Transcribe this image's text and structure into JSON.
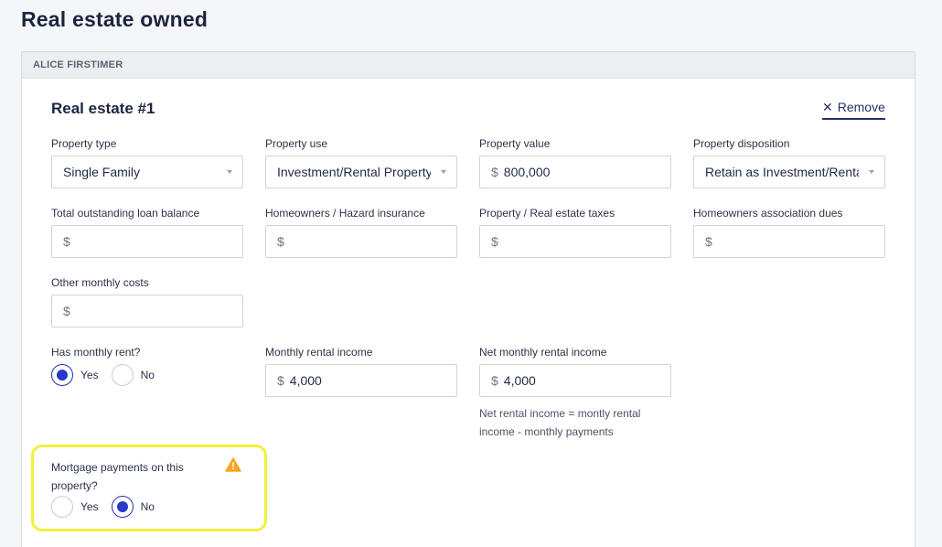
{
  "page": {
    "title": "Real estate owned"
  },
  "panel": {
    "borrower": "ALICE FIRSTIMER",
    "section_title": "Real estate #1",
    "remove_label": "Remove"
  },
  "fields": {
    "property_type": {
      "label": "Property type",
      "value": "Single Family"
    },
    "property_use": {
      "label": "Property use",
      "value": "Investment/Rental Property"
    },
    "property_value": {
      "label": "Property value",
      "currency": "$",
      "value": "800,000"
    },
    "property_disposition": {
      "label": "Property disposition",
      "value": "Retain as Investment/Rental"
    },
    "loan_balance": {
      "label": "Total outstanding loan balance",
      "currency": "$",
      "value": ""
    },
    "hazard_insurance": {
      "label": "Homeowners / Hazard insurance",
      "currency": "$",
      "value": ""
    },
    "taxes": {
      "label": "Property / Real estate taxes",
      "currency": "$",
      "value": ""
    },
    "hoa_dues": {
      "label": "Homeowners association dues",
      "currency": "$",
      "value": ""
    },
    "other_costs": {
      "label": "Other monthly costs",
      "currency": "$",
      "value": ""
    },
    "monthly_rental_income": {
      "label": "Monthly rental income",
      "currency": "$",
      "value": "4,000"
    },
    "net_monthly_rental_income": {
      "label": "Net monthly rental income",
      "currency": "$",
      "value": "4,000",
      "help": "Net rental income = montly rental income - monthly payments"
    }
  },
  "has_monthly_rent": {
    "label": "Has monthly rent?",
    "yes": "Yes",
    "no": "No",
    "selected": "yes"
  },
  "mortgage_payments": {
    "label": "Mortgage payments on this property?",
    "yes": "Yes",
    "no": "No",
    "selected": "no"
  },
  "colors": {
    "accent": "#2a38c7",
    "highlight": "#f3f03a",
    "warning": "#f5a623"
  },
  "icons": {
    "remove": "close-icon",
    "warning": "warning-icon",
    "caret": "chevron-down-icon"
  }
}
